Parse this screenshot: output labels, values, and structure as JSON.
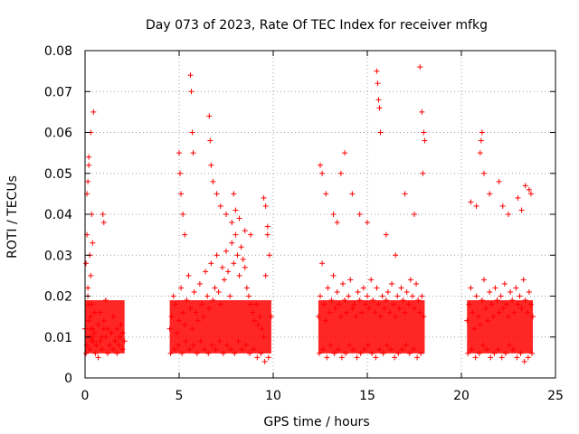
{
  "chart_data": {
    "type": "scatter",
    "title": "Day 073 of 2023, Rate Of TEC Index for receiver mfkg",
    "xlabel": "GPS time / hours",
    "ylabel": "ROTI / TECUs",
    "xlim": [
      0,
      25
    ],
    "ylim": [
      0,
      0.08
    ],
    "xticks": [
      0,
      5,
      10,
      15,
      20,
      25
    ],
    "yticks": [
      0,
      0.01,
      0.02,
      0.03,
      0.04,
      0.05,
      0.06,
      0.07,
      0.08
    ],
    "xtick_labels": [
      "0",
      "5",
      "10",
      "15",
      "20",
      "25"
    ],
    "ytick_labels": [
      "0",
      "0.01",
      "0.02",
      "0.03",
      "0.04",
      "0.05",
      "0.06",
      "0.07",
      "0.08"
    ],
    "grid": true,
    "marker": "+",
    "marker_color": "#ff0000",
    "series": [
      {
        "name": "ROTI",
        "x": [
          0.0,
          0.05,
          0.1,
          0.15,
          0.2,
          0.25,
          0.3,
          0.35,
          0.4,
          0.5,
          0.6,
          0.7,
          0.8,
          0.9,
          1.0,
          1.1,
          1.2,
          1.3,
          1.4,
          1.5,
          1.6,
          1.7,
          1.8,
          1.9,
          2.0,
          2.1,
          0.05,
          0.1,
          0.15,
          0.2,
          0.25,
          0.3,
          0.35,
          0.4,
          0.45,
          0.5,
          0.55,
          0.6,
          0.7,
          0.8,
          0.9,
          1.0,
          1.1,
          1.2,
          1.3,
          1.4,
          1.5,
          1.6,
          1.7,
          1.8,
          1.9,
          2.0,
          0.1,
          0.2,
          0.3,
          0.35,
          0.4,
          0.2,
          0.15,
          1.0,
          0.95,
          0.3,
          0.25,
          0.45,
          4.5,
          4.6,
          4.7,
          4.8,
          4.9,
          5.0,
          5.1,
          5.2,
          5.3,
          5.4,
          5.5,
          5.6,
          5.7,
          5.8,
          5.9,
          6.0,
          6.1,
          6.2,
          6.3,
          6.4,
          6.5,
          6.6,
          6.7,
          6.8,
          6.9,
          7.0,
          7.1,
          7.2,
          7.3,
          7.4,
          7.5,
          7.6,
          7.7,
          7.8,
          7.9,
          8.0,
          8.1,
          8.2,
          8.3,
          8.4,
          8.5,
          8.6,
          8.7,
          8.8,
          8.9,
          9.0,
          9.1,
          9.2,
          9.3,
          9.4,
          9.5,
          9.6,
          9.7,
          9.8,
          9.9,
          4.55,
          4.75,
          4.95,
          5.15,
          5.35,
          5.55,
          5.75,
          5.95,
          6.15,
          6.35,
          6.55,
          6.75,
          6.95,
          7.15,
          7.35,
          7.55,
          7.75,
          7.95,
          8.15,
          8.35,
          8.55,
          8.75,
          8.95,
          9.15,
          9.35,
          9.55,
          9.75,
          5.0,
          5.05,
          5.1,
          5.2,
          5.3,
          5.6,
          5.65,
          5.7,
          5.75,
          6.6,
          6.65,
          6.7,
          6.8,
          7.0,
          7.2,
          7.5,
          7.8,
          7.9,
          8.0,
          8.2,
          8.5,
          8.8,
          9.5,
          9.6,
          9.7,
          12.4,
          12.5,
          12.6,
          12.7,
          12.8,
          12.9,
          13.0,
          13.1,
          13.2,
          13.3,
          13.4,
          13.5,
          13.6,
          13.7,
          13.8,
          13.9,
          14.0,
          14.1,
          14.2,
          14.3,
          14.4,
          14.5,
          14.6,
          14.7,
          14.8,
          14.9,
          15.0,
          15.1,
          15.2,
          15.3,
          15.4,
          15.5,
          15.6,
          15.7,
          15.8,
          15.9,
          16.0,
          16.1,
          16.2,
          16.3,
          16.4,
          16.5,
          16.6,
          16.7,
          16.8,
          16.9,
          17.0,
          17.1,
          17.2,
          17.3,
          17.4,
          17.5,
          17.6,
          17.7,
          17.8,
          17.9,
          18.0,
          12.45,
          12.65,
          12.85,
          13.05,
          13.25,
          13.45,
          13.65,
          13.85,
          14.05,
          14.25,
          14.45,
          14.65,
          14.85,
          15.05,
          15.25,
          15.45,
          15.65,
          15.85,
          16.05,
          16.25,
          16.45,
          16.65,
          16.85,
          17.05,
          17.25,
          17.45,
          17.65,
          17.85,
          12.5,
          12.6,
          12.8,
          13.2,
          13.4,
          13.6,
          13.8,
          14.2,
          14.6,
          15.0,
          15.5,
          15.55,
          15.6,
          15.65,
          15.7,
          16.0,
          16.5,
          17.0,
          17.5,
          17.8,
          17.9,
          18.0,
          18.05,
          17.95,
          20.3,
          20.4,
          20.5,
          20.6,
          20.7,
          20.8,
          20.9,
          21.0,
          21.1,
          21.2,
          21.3,
          21.4,
          21.5,
          21.6,
          21.7,
          21.8,
          21.9,
          22.0,
          22.1,
          22.2,
          22.3,
          22.4,
          22.5,
          22.6,
          22.7,
          22.8,
          22.9,
          23.0,
          23.1,
          23.2,
          23.3,
          23.4,
          23.5,
          23.6,
          23.7,
          23.8,
          20.35,
          20.55,
          20.75,
          20.95,
          21.15,
          21.35,
          21.55,
          21.75,
          21.95,
          22.15,
          22.35,
          22.55,
          22.75,
          22.95,
          23.15,
          23.35,
          23.55,
          23.75,
          20.5,
          20.8,
          21.0,
          21.05,
          21.1,
          21.2,
          21.5,
          22.0,
          22.2,
          22.5,
          23.0,
          23.2,
          23.4,
          23.6,
          23.7
        ],
        "y": [
          0.012,
          0.028,
          0.035,
          0.022,
          0.018,
          0.01,
          0.015,
          0.009,
          0.012,
          0.011,
          0.008,
          0.013,
          0.016,
          0.01,
          0.014,
          0.019,
          0.012,
          0.008,
          0.011,
          0.015,
          0.009,
          0.012,
          0.01,
          0.013,
          0.011,
          0.009,
          0.006,
          0.008,
          0.02,
          0.014,
          0.007,
          0.012,
          0.018,
          0.01,
          0.009,
          0.016,
          0.006,
          0.008,
          0.005,
          0.009,
          0.007,
          0.012,
          0.01,
          0.006,
          0.008,
          0.011,
          0.007,
          0.009,
          0.006,
          0.008,
          0.01,
          0.007,
          0.045,
          0.052,
          0.06,
          0.04,
          0.033,
          0.054,
          0.048,
          0.038,
          0.04,
          0.025,
          0.03,
          0.065,
          0.012,
          0.015,
          0.02,
          0.018,
          0.011,
          0.014,
          0.022,
          0.016,
          0.013,
          0.019,
          0.025,
          0.017,
          0.012,
          0.021,
          0.016,
          0.014,
          0.023,
          0.018,
          0.015,
          0.026,
          0.02,
          0.017,
          0.028,
          0.019,
          0.022,
          0.03,
          0.021,
          0.018,
          0.027,
          0.024,
          0.031,
          0.026,
          0.02,
          0.033,
          0.028,
          0.035,
          0.03,
          0.025,
          0.032,
          0.029,
          0.027,
          0.022,
          0.02,
          0.018,
          0.016,
          0.014,
          0.018,
          0.013,
          0.015,
          0.012,
          0.01,
          0.025,
          0.035,
          0.03,
          0.015,
          0.006,
          0.007,
          0.008,
          0.006,
          0.009,
          0.007,
          0.008,
          0.006,
          0.009,
          0.007,
          0.006,
          0.008,
          0.007,
          0.009,
          0.006,
          0.008,
          0.007,
          0.006,
          0.009,
          0.007,
          0.008,
          0.006,
          0.007,
          0.005,
          0.006,
          0.004,
          0.005,
          0.055,
          0.05,
          0.045,
          0.04,
          0.035,
          0.074,
          0.07,
          0.06,
          0.055,
          0.064,
          0.058,
          0.052,
          0.048,
          0.045,
          0.042,
          0.04,
          0.038,
          0.045,
          0.041,
          0.039,
          0.036,
          0.035,
          0.044,
          0.042,
          0.037,
          0.015,
          0.02,
          0.028,
          0.018,
          0.014,
          0.022,
          0.016,
          0.019,
          0.025,
          0.017,
          0.021,
          0.018,
          0.015,
          0.023,
          0.019,
          0.016,
          0.02,
          0.024,
          0.017,
          0.018,
          0.015,
          0.021,
          0.019,
          0.016,
          0.022,
          0.018,
          0.02,
          0.017,
          0.024,
          0.019,
          0.016,
          0.022,
          0.018,
          0.015,
          0.02,
          0.017,
          0.019,
          0.021,
          0.016,
          0.023,
          0.018,
          0.015,
          0.02,
          0.017,
          0.022,
          0.019,
          0.016,
          0.021,
          0.018,
          0.024,
          0.02,
          0.017,
          0.023,
          0.019,
          0.016,
          0.02,
          0.015,
          0.006,
          0.007,
          0.005,
          0.008,
          0.006,
          0.007,
          0.005,
          0.006,
          0.008,
          0.007,
          0.005,
          0.006,
          0.007,
          0.008,
          0.006,
          0.005,
          0.007,
          0.006,
          0.008,
          0.007,
          0.005,
          0.006,
          0.007,
          0.008,
          0.006,
          0.007,
          0.005,
          0.006,
          0.052,
          0.05,
          0.045,
          0.04,
          0.038,
          0.05,
          0.055,
          0.045,
          0.04,
          0.038,
          0.075,
          0.072,
          0.068,
          0.066,
          0.06,
          0.035,
          0.03,
          0.045,
          0.04,
          0.076,
          0.065,
          0.06,
          0.058,
          0.05,
          0.014,
          0.018,
          0.022,
          0.016,
          0.012,
          0.02,
          0.015,
          0.013,
          0.019,
          0.024,
          0.017,
          0.014,
          0.021,
          0.018,
          0.015,
          0.022,
          0.019,
          0.016,
          0.02,
          0.017,
          0.023,
          0.018,
          0.015,
          0.021,
          0.019,
          0.016,
          0.022,
          0.018,
          0.02,
          0.017,
          0.024,
          0.019,
          0.016,
          0.021,
          0.018,
          0.015,
          0.006,
          0.007,
          0.005,
          0.006,
          0.008,
          0.007,
          0.005,
          0.006,
          0.007,
          0.005,
          0.006,
          0.008,
          0.007,
          0.005,
          0.006,
          0.004,
          0.005,
          0.006,
          0.043,
          0.042,
          0.055,
          0.058,
          0.06,
          0.05,
          0.045,
          0.048,
          0.042,
          0.04,
          0.044,
          0.041,
          0.047,
          0.046,
          0.045
        ]
      }
    ]
  }
}
